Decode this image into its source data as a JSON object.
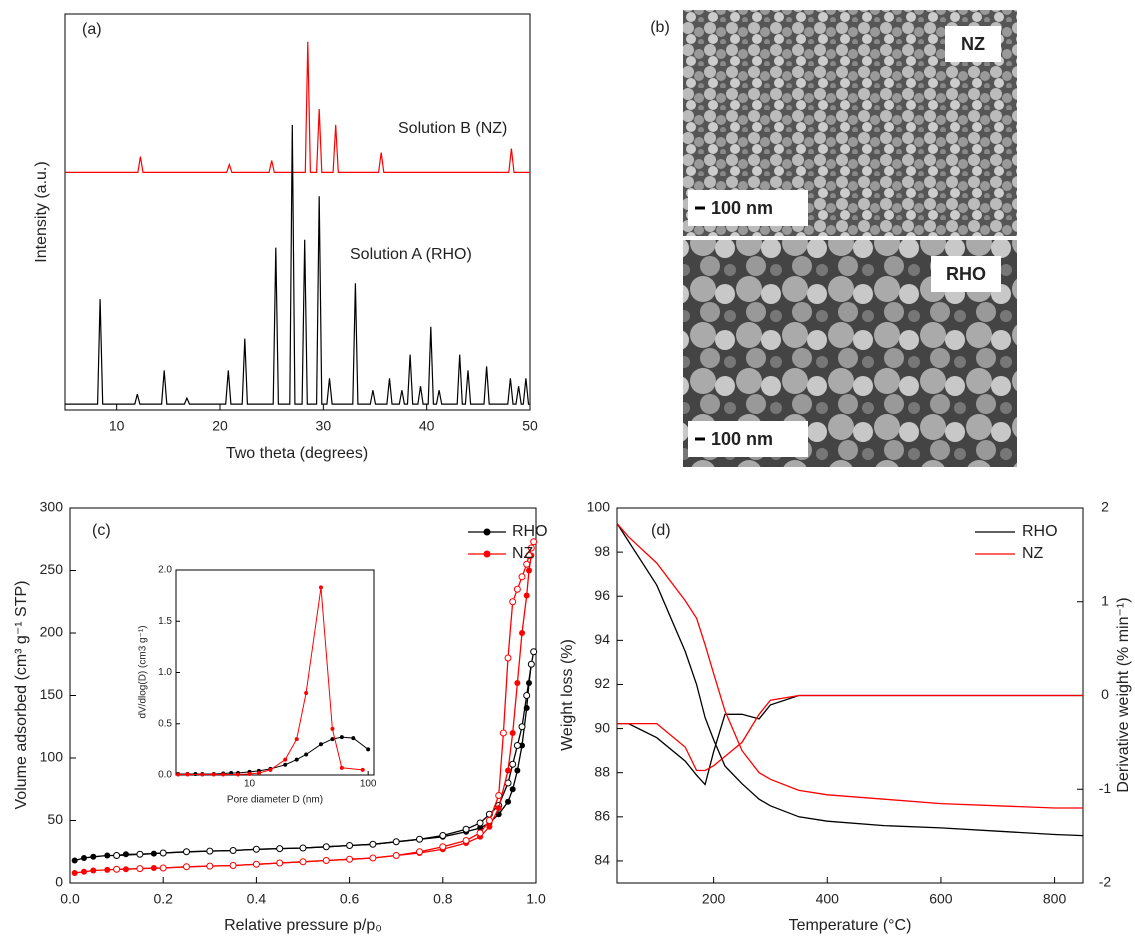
{
  "chart_data": [
    {
      "type": "line",
      "label": "(a)",
      "xlabel": "Two theta (degrees)",
      "ylabel": "Intensity (a.u.)",
      "xlim": [
        5,
        50
      ],
      "xticks": [
        10,
        20,
        30,
        40,
        50
      ],
      "ylim": [
        0,
        100
      ],
      "series": [
        {
          "name": "Solution B (NZ)",
          "color": "#ff0000",
          "x": [
            5,
            12.05,
            12.3,
            12.55,
            20.65,
            20.9,
            21.15,
            24.75,
            25,
            25.25,
            28.25,
            28.5,
            28.75,
            29.35,
            29.6,
            29.85,
            30.95,
            31.2,
            31.45,
            35.35,
            35.6,
            35.85,
            47.95,
            48.2,
            48.45,
            50
          ],
          "values": [
            60,
            60,
            64,
            60,
            60,
            62,
            60,
            60,
            63,
            60,
            60,
            93,
            60,
            60,
            76,
            60,
            60,
            72,
            60,
            60,
            65,
            60,
            60,
            66,
            60,
            60
          ]
        },
        {
          "name": "Solution A (RHO)",
          "color": "#000000",
          "x": [
            5,
            8.15,
            8.4,
            8.65,
            11.75,
            12,
            12.25,
            14.35,
            14.6,
            14.85,
            16.55,
            16.8,
            17.05,
            20.55,
            20.8,
            21.05,
            22.15,
            22.4,
            22.65,
            25.15,
            25.4,
            25.65,
            26.75,
            27,
            27.25,
            27.95,
            28.2,
            28.45,
            29.35,
            29.6,
            29.85,
            30.35,
            30.6,
            30.85,
            32.85,
            33.1,
            33.35,
            34.55,
            34.8,
            35.05,
            36.15,
            36.4,
            36.65,
            37.35,
            37.6,
            37.85,
            38.15,
            38.4,
            38.65,
            39.15,
            39.4,
            39.65,
            40.15,
            40.4,
            40.65,
            40.95,
            41.2,
            41.45,
            42.95,
            43.2,
            43.45,
            43.75,
            44,
            44.25,
            45.55,
            45.8,
            46.05,
            47.85,
            48.1,
            48.35,
            48.65,
            48.9,
            49.15,
            49.35,
            49.6,
            49.85,
            50
          ],
          "values": [
            1.5,
            1.5,
            28,
            1.5,
            1.5,
            4,
            1.5,
            1.5,
            10,
            1.5,
            1.5,
            3,
            1.5,
            1.5,
            10,
            1.5,
            1.5,
            18,
            1.5,
            1.5,
            41,
            1.5,
            1.5,
            72,
            1.5,
            1.5,
            43,
            1.5,
            1.5,
            54,
            1.5,
            1.5,
            8,
            1.5,
            1.5,
            32,
            1.5,
            1.5,
            5,
            1.5,
            1.5,
            8,
            1.5,
            1.5,
            5,
            1.5,
            1.5,
            14,
            1.5,
            1.5,
            6,
            1.5,
            1.5,
            21,
            1.5,
            1.5,
            5,
            1.5,
            1.5,
            14,
            1.5,
            1.5,
            10,
            1.5,
            1.5,
            11,
            1.5,
            1.5,
            8,
            1.5,
            1.5,
            6,
            1.5,
            1.5,
            8,
            1.5,
            1.5
          ]
        }
      ]
    },
    {
      "type": "image",
      "label": "(b)",
      "images": [
        {
          "tag": "NZ",
          "scale_bar": "100 nm"
        },
        {
          "tag": "RHO",
          "scale_bar": "100 nm"
        }
      ]
    },
    {
      "type": "isotherm",
      "label": "(c)",
      "xlabel": "Relative pressure p/p₀",
      "ylabel": "Volume adsorbed (cm³ g⁻¹ STP)",
      "xlim": [
        0,
        1
      ],
      "xticks": [
        {
          "value": 0,
          "label": "0.0"
        },
        0.2,
        0.4,
        0.6,
        0.8,
        {
          "value": 1,
          "label": "1.0"
        }
      ],
      "ylim": [
        0,
        300
      ],
      "yticks": [
        0,
        50,
        100,
        150,
        200,
        250,
        300
      ],
      "series": [
        {
          "name": "RHO",
          "color": "#000000",
          "x": [
            0.01,
            0.03,
            0.05,
            0.08,
            0.1,
            0.12,
            0.15,
            0.18,
            0.2,
            0.25,
            0.3,
            0.35,
            0.4,
            0.45,
            0.5,
            0.55,
            0.6,
            0.65,
            0.7,
            0.75,
            0.8,
            0.85,
            0.88,
            0.9,
            0.92,
            0.94,
            0.95,
            0.96,
            0.97,
            0.98,
            0.985,
            0.99
          ],
          "values": [
            18,
            20,
            21,
            22,
            22,
            23,
            23,
            23.5,
            24,
            25,
            25.5,
            26,
            27,
            27.5,
            28,
            29,
            30,
            31,
            33,
            35,
            37,
            41,
            44,
            48,
            55,
            65,
            75,
            90,
            110,
            140,
            160,
            175
          ],
          "desorption_x": [
            0.995,
            0.99,
            0.98,
            0.97,
            0.96,
            0.95,
            0.94,
            0.92,
            0.9,
            0.88,
            0.85,
            0.8,
            0.75,
            0.7,
            0.65,
            0.6,
            0.55,
            0.5,
            0.45,
            0.4,
            0.35,
            0.3,
            0.25,
            0.2,
            0.15,
            0.1
          ],
          "desorption": [
            185,
            175,
            150,
            125,
            110,
            95,
            80,
            62,
            55,
            48,
            43,
            38,
            35,
            33,
            31,
            30,
            29,
            28,
            27.5,
            27,
            26,
            25.5,
            25,
            24,
            23,
            22
          ]
        },
        {
          "name": "NZ",
          "color": "#ff0000",
          "x": [
            0.01,
            0.03,
            0.05,
            0.08,
            0.1,
            0.12,
            0.15,
            0.18,
            0.2,
            0.25,
            0.3,
            0.35,
            0.4,
            0.45,
            0.5,
            0.55,
            0.6,
            0.65,
            0.7,
            0.75,
            0.8,
            0.85,
            0.88,
            0.9,
            0.92,
            0.94,
            0.95,
            0.96,
            0.97,
            0.98,
            0.985,
            0.99
          ],
          "values": [
            8,
            9,
            10,
            10.5,
            11,
            11,
            11.5,
            12,
            12,
            13,
            13.5,
            14,
            15,
            16,
            17,
            18,
            19,
            20,
            22,
            24,
            27,
            32,
            37,
            45,
            60,
            90,
            120,
            160,
            200,
            230,
            250,
            262
          ],
          "desorption_x": [
            0.995,
            0.99,
            0.985,
            0.98,
            0.97,
            0.96,
            0.95,
            0.94,
            0.93,
            0.92,
            0.9,
            0.88,
            0.85,
            0.8,
            0.75,
            0.7,
            0.65,
            0.6,
            0.55,
            0.5,
            0.45,
            0.4,
            0.35,
            0.3,
            0.25,
            0.2,
            0.15,
            0.1
          ],
          "desorption": [
            273,
            268,
            262,
            255,
            245,
            235,
            225,
            180,
            120,
            70,
            50,
            40,
            34,
            29,
            25,
            22,
            20,
            19,
            18,
            17,
            16,
            15,
            14,
            13.5,
            13,
            12,
            11.5,
            11
          ]
        }
      ],
      "inset": {
        "xlabel": "Pore diameter D (nm)",
        "ylabel": "dV/dlog(D) (cm3 g⁻¹)",
        "log_x": true,
        "xlim": [
          2.4,
          112
        ],
        "xticks": [
          10,
          100
        ],
        "ylim": [
          0,
          2
        ],
        "yticks": [
          {
            "value": 0,
            "label": "0.0"
          },
          0.5,
          {
            "value": 1,
            "label": "1.0"
          },
          1.5,
          {
            "value": 2,
            "label": "2.0"
          }
        ],
        "series": [
          {
            "color": "#000000",
            "x": [
              2.5,
              3,
              3.5,
              4,
              5,
              6,
              7,
              8,
              10,
              12,
              15,
              20,
              25,
              30,
              40,
              50,
              60,
              75,
              100
            ],
            "values": [
              0.01,
              0.01,
              0.01,
              0.01,
              0.01,
              0.015,
              0.02,
              0.02,
              0.03,
              0.04,
              0.06,
              0.1,
              0.15,
              0.2,
              0.3,
              0.35,
              0.37,
              0.36,
              0.25
            ]
          },
          {
            "color": "#ff0000",
            "x": [
              2.5,
              3,
              4,
              5,
              6,
              8,
              10,
              12,
              15,
              20,
              25,
              30,
              40,
              50,
              60,
              90
            ],
            "values": [
              0.005,
              0.005,
              0.005,
              0.005,
              0.005,
              0.005,
              0.01,
              0.02,
              0.05,
              0.15,
              0.35,
              0.8,
              1.83,
              0.45,
              0.07,
              0.05
            ]
          }
        ]
      }
    },
    {
      "type": "tga",
      "label": "(d)",
      "xlabel": "Temperature (°C)",
      "ylabel": "Weight loss (%)",
      "y2label": "Derivative weight (% min⁻¹)",
      "xlim": [
        30,
        850
      ],
      "xticks": [
        200,
        400,
        600,
        800
      ],
      "ylim": [
        83,
        100
      ],
      "yticks": [
        84,
        86,
        88,
        90,
        92,
        94,
        96,
        98,
        100
      ],
      "y2lim": [
        -2,
        2
      ],
      "y2ticks": [
        -2,
        -1,
        0,
        1,
        2
      ],
      "x": [
        30,
        50,
        100,
        150,
        170,
        185,
        200,
        220,
        250,
        280,
        300,
        350,
        400,
        500,
        600,
        700,
        800,
        850
      ],
      "series": [
        {
          "name": "RHO",
          "color": "#000000",
          "values": [
            99.3,
            98.5,
            96.5,
            93.5,
            92,
            90.5,
            89.5,
            88.3,
            87.5,
            86.8,
            86.5,
            86.0,
            85.8,
            85.6,
            85.5,
            85.35,
            85.2,
            85.15
          ],
          "derivative": [
            -0.3,
            -0.3,
            -0.45,
            -0.7,
            -0.85,
            -0.95,
            -0.6,
            -0.2,
            -0.2,
            -0.25,
            -0.1,
            0,
            0,
            0,
            0,
            0,
            0,
            0
          ]
        },
        {
          "name": "NZ",
          "color": "#ff0000",
          "values": [
            99.3,
            98.7,
            97.5,
            95.8,
            95,
            93.8,
            92.5,
            90.8,
            89,
            88,
            87.7,
            87.2,
            87,
            86.8,
            86.6,
            86.5,
            86.4,
            86.4
          ],
          "derivative": [
            -0.3,
            -0.3,
            -0.3,
            -0.55,
            -0.8,
            -0.8,
            -0.75,
            -0.65,
            -0.5,
            -0.2,
            -0.05,
            0,
            0,
            0,
            0,
            0,
            0,
            0
          ]
        }
      ]
    }
  ]
}
